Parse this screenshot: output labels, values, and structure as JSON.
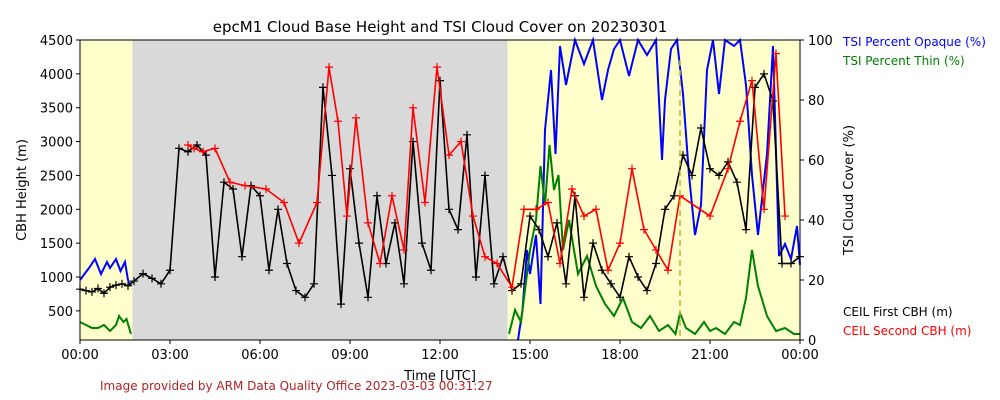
{
  "chart_data": {
    "type": "line",
    "title": "epcM1 Cloud Base Height and TSI Cloud Cover on 20230301",
    "xlabel": "Time [UTC]",
    "ylabel_left": "CBH Height (m)",
    "ylabel_right": "TSI Cloud Cover (%)",
    "x_range_hours": [
      0,
      24
    ],
    "x_ticks": [
      "00:00",
      "03:00",
      "06:00",
      "09:00",
      "12:00",
      "15:00",
      "18:00",
      "21:00",
      "00:00"
    ],
    "ylim_left": [
      70,
      4500
    ],
    "yticks_left": [
      500,
      1000,
      1500,
      2000,
      2500,
      3000,
      3500,
      4000,
      4500
    ],
    "ylim_right": [
      0,
      100
    ],
    "yticks_right": [
      0,
      20,
      40,
      60,
      80,
      100
    ],
    "grid": false,
    "legend_position": "right",
    "shaded_regions": [
      {
        "start": 0.0,
        "end": 1.75,
        "color": "#ffffcc"
      },
      {
        "start": 1.75,
        "end": 14.25,
        "color": "#d9d9d9"
      },
      {
        "start": 14.25,
        "end": 24.0,
        "color": "#ffffcc"
      }
    ],
    "vertical_line": {
      "x": 20.0,
      "color": "#bbbb22"
    },
    "legends": [
      {
        "name": "TSI Percent Opaque (%)",
        "color": "#0000ff"
      },
      {
        "name": "TSI Percent Thin (%)",
        "color": "#008000"
      },
      {
        "name": "CEIL First CBH (m)",
        "color": "#000000"
      },
      {
        "name": "CEIL Second CBH (m)",
        "color": "#ff0000"
      }
    ],
    "series": [
      {
        "name": "TSI Percent Opaque (%)",
        "axis": "right",
        "color": "#0000ff",
        "x": [
          0.0,
          0.3,
          0.5,
          0.7,
          0.9,
          1.0,
          1.2,
          1.35,
          1.5,
          1.6,
          1.7,
          14.6,
          14.75,
          14.9,
          15.0,
          15.2,
          15.35,
          15.5,
          15.7,
          15.85,
          16.0,
          16.2,
          16.5,
          16.8,
          17.1,
          17.4,
          17.6,
          17.8,
          18.0,
          18.3,
          18.6,
          18.9,
          19.2,
          19.4,
          19.5,
          19.7,
          19.9,
          20.1,
          20.3,
          20.5,
          20.7,
          20.9,
          21.1,
          21.3,
          21.5,
          21.8,
          22.0,
          22.2,
          22.4,
          22.6,
          22.9,
          23.1,
          23.3,
          23.5,
          23.7,
          23.9,
          24.0
        ],
        "y": [
          20,
          24,
          27,
          22,
          26,
          24,
          27,
          23,
          26,
          20,
          18,
          0,
          10,
          30,
          22,
          35,
          12,
          70,
          90,
          62,
          98,
          85,
          100,
          92,
          100,
          80,
          90,
          97,
          100,
          88,
          100,
          95,
          100,
          60,
          80,
          97,
          100,
          82,
          55,
          35,
          45,
          90,
          100,
          82,
          100,
          98,
          100,
          85,
          55,
          35,
          62,
          98,
          28,
          32,
          27,
          38,
          25
        ]
      },
      {
        "name": "TSI Percent Thin (%)",
        "axis": "right",
        "color": "#008000",
        "x": [
          0.0,
          0.2,
          0.4,
          0.6,
          0.8,
          1.0,
          1.2,
          1.3,
          1.45,
          1.55,
          1.7,
          14.3,
          14.5,
          14.7,
          14.85,
          15.0,
          15.2,
          15.35,
          15.5,
          15.65,
          15.8,
          15.95,
          16.1,
          16.3,
          16.6,
          16.9,
          17.2,
          17.5,
          17.8,
          18.1,
          18.4,
          18.7,
          19.0,
          19.3,
          19.6,
          19.85,
          20.0,
          20.2,
          20.5,
          20.8,
          21.0,
          21.2,
          21.5,
          21.8,
          22.0,
          22.2,
          22.4,
          22.6,
          22.9,
          23.2,
          23.5,
          23.8,
          24.0
        ],
        "y": [
          6,
          5,
          4,
          4,
          5,
          3,
          5,
          8,
          6,
          7,
          2,
          2,
          10,
          6,
          18,
          30,
          40,
          58,
          45,
          65,
          50,
          55,
          30,
          40,
          22,
          28,
          18,
          12,
          8,
          14,
          6,
          4,
          8,
          3,
          5,
          2,
          9,
          4,
          2,
          6,
          3,
          4,
          2,
          6,
          5,
          14,
          30,
          18,
          8,
          3,
          4,
          2,
          2
        ]
      },
      {
        "name": "CEIL First CBH (m)",
        "axis": "left",
        "color": "#000000",
        "x": [
          0.0,
          0.2,
          0.4,
          0.6,
          0.8,
          1.0,
          1.2,
          1.4,
          1.6,
          1.8,
          2.1,
          2.4,
          2.7,
          3.0,
          3.3,
          3.6,
          3.9,
          4.2,
          4.5,
          4.8,
          5.1,
          5.4,
          5.7,
          6.0,
          6.3,
          6.6,
          6.9,
          7.2,
          7.5,
          7.8,
          8.1,
          8.4,
          8.7,
          9.0,
          9.3,
          9.6,
          9.9,
          10.2,
          10.5,
          10.8,
          11.1,
          11.4,
          11.7,
          12.0,
          12.3,
          12.6,
          12.9,
          13.2,
          13.5,
          13.8,
          14.1,
          14.4,
          14.7,
          15.0,
          15.3,
          15.6,
          15.9,
          16.2,
          16.5,
          16.8,
          17.1,
          17.4,
          17.7,
          18.0,
          18.3,
          18.6,
          18.9,
          19.2,
          19.5,
          19.8,
          20.1,
          20.4,
          20.7,
          21.0,
          21.3,
          21.6,
          21.9,
          22.2,
          22.5,
          22.8,
          23.1,
          23.4,
          23.7,
          24.0
        ],
        "y": [
          820,
          800,
          780,
          830,
          760,
          850,
          880,
          900,
          870,
          940,
          1050,
          980,
          900,
          1100,
          2900,
          2850,
          2950,
          2800,
          1000,
          2400,
          2300,
          1300,
          2350,
          2200,
          1100,
          2000,
          1200,
          800,
          700,
          900,
          3800,
          2500,
          600,
          2600,
          1500,
          700,
          2200,
          1200,
          1800,
          900,
          3000,
          1500,
          1100,
          3900,
          2000,
          1700,
          3100,
          1000,
          2500,
          900,
          1300,
          800,
          900,
          1900,
          1700,
          1300,
          1800,
          900,
          2200,
          700,
          1500,
          1100,
          900,
          700,
          1300,
          1000,
          800,
          1200,
          2000,
          2200,
          2800,
          2500,
          3200,
          2600,
          2500,
          2700,
          2400,
          1700,
          3800,
          4000,
          3600,
          1200,
          1200,
          1300
        ]
      },
      {
        "name": "CEIL Second CBH (m)",
        "axis": "left",
        "color": "#ff0000",
        "x": [
          3.6,
          3.8,
          4.1,
          4.5,
          5.0,
          5.5,
          6.2,
          6.8,
          7.3,
          7.9,
          8.3,
          8.6,
          8.9,
          9.2,
          9.6,
          10.0,
          10.4,
          10.8,
          11.1,
          11.5,
          11.9,
          12.3,
          12.7,
          13.1,
          13.5,
          13.9,
          14.4,
          14.8,
          15.2,
          15.6,
          16.0,
          16.4,
          16.8,
          17.2,
          17.6,
          18.0,
          18.4,
          18.8,
          19.2,
          19.6,
          20.0,
          21.0,
          21.6,
          22.0,
          22.4,
          22.8,
          23.2,
          23.5
        ],
        "y": [
          2950,
          2900,
          2850,
          2900,
          2400,
          2350,
          2300,
          2100,
          1500,
          2100,
          4100,
          3300,
          1900,
          3350,
          1800,
          1200,
          2200,
          1400,
          3500,
          2100,
          4100,
          2800,
          3000,
          1900,
          1300,
          1200,
          850,
          2000,
          2000,
          2100,
          1200,
          2300,
          1900,
          2000,
          1100,
          1500,
          2600,
          1700,
          1400,
          1100,
          2200,
          1900,
          2600,
          3300,
          3900,
          2000,
          4300,
          1900
        ]
      }
    ]
  },
  "footer": {
    "credit": "Image provided by ARM Data Quality Office 2023-03-03 00:31:27"
  }
}
